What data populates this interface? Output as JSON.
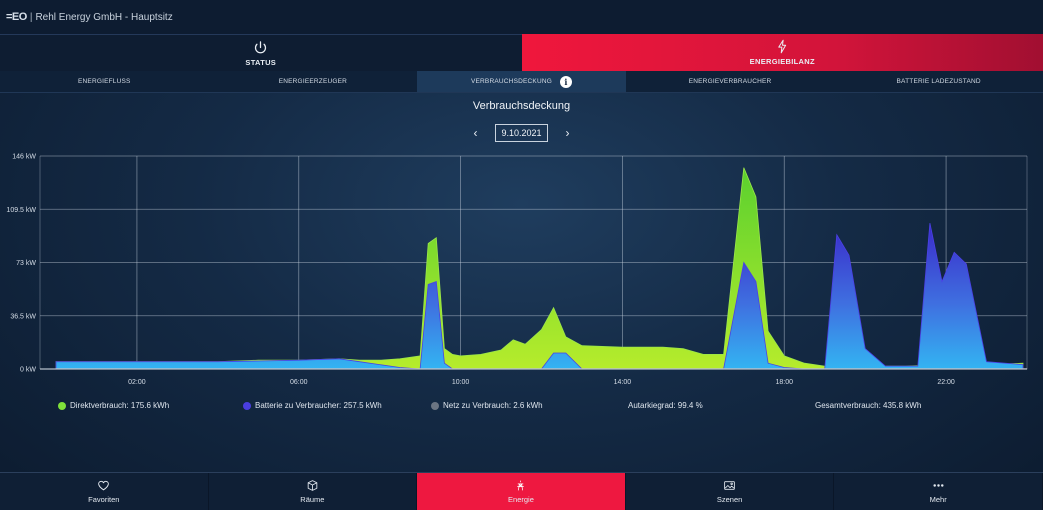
{
  "app": {
    "logo": "=EO",
    "separator": "|",
    "title": "Rehl Energy GmbH - Hauptsitz"
  },
  "main_tabs": [
    {
      "label": "STATUS",
      "icon": "power-icon",
      "active": false
    },
    {
      "label": "ENERGIEBILANZ",
      "icon": "lightning-icon",
      "active": true
    }
  ],
  "sub_tabs": [
    {
      "label": "ENERGIEFLUSS",
      "active": false
    },
    {
      "label": "ENERGIEERZEUGER",
      "active": false
    },
    {
      "label": "VERBRAUCHSDECKUNG",
      "active": true
    },
    {
      "label": "ENERGIEVERBRAUCHER",
      "active": false
    },
    {
      "label": "BATTERIE LADEZUSTAND",
      "active": false
    }
  ],
  "page": {
    "title": "Verbrauchsdeckung",
    "date": "9.10.2021",
    "prev_icon": "chevron-left-icon",
    "next_icon": "chevron-right-icon",
    "info_glyph": "i"
  },
  "colors": {
    "direct": "#7fe03a",
    "battery": "#4a3ee0",
    "grid": "#6b7583",
    "active_red": "#ee1840"
  },
  "chart_data": {
    "type": "area",
    "x_unit": "hours",
    "y_unit": "kW",
    "ylim": [
      0,
      146
    ],
    "y_ticks": [
      0,
      36.5,
      73,
      109.5,
      146
    ],
    "y_tick_labels": [
      "0 kW",
      "36.5 kW",
      "73 kW",
      "109.5 kW",
      "146 kW"
    ],
    "x_ticks": [
      2,
      6,
      10,
      14,
      18,
      22
    ],
    "x_tick_labels": [
      "02:00",
      "06:00",
      "10:00",
      "14:00",
      "18:00",
      "22:00"
    ],
    "xlim": [
      0,
      24
    ],
    "grid": true,
    "series": [
      {
        "key": "direct",
        "x": [
          0,
          2,
          4,
          5,
          6,
          7,
          7.5,
          8,
          8.5,
          9,
          9.2,
          9.4,
          9.6,
          9.8,
          10,
          10.5,
          11,
          11.3,
          11.6,
          12,
          12.3,
          12.6,
          13,
          14,
          15,
          15.5,
          16,
          16.5,
          17,
          17.3,
          17.6,
          18,
          18.5,
          19,
          20,
          21,
          22,
          23,
          23.9
        ],
        "values": [
          5,
          5,
          5,
          6,
          6,
          7,
          6,
          6,
          7,
          9,
          86,
          90,
          14,
          10,
          9,
          10,
          13,
          20,
          17,
          27,
          42,
          22,
          16,
          15,
          15,
          14,
          10,
          10,
          138,
          118,
          26,
          9,
          4,
          2,
          2,
          2,
          3,
          3,
          4
        ]
      },
      {
        "key": "battery",
        "x": [
          0,
          2,
          4,
          5,
          6,
          7,
          7.5,
          8,
          8.5,
          9,
          9.2,
          9.4,
          9.6,
          9.8,
          10,
          11,
          12,
          12.3,
          12.6,
          13,
          14,
          15,
          16,
          16.5,
          17,
          17.3,
          17.6,
          18,
          18.5,
          19,
          19.3,
          19.6,
          20,
          20.5,
          21,
          21.3,
          21.6,
          21.9,
          22.2,
          22.5,
          23,
          23.9
        ],
        "values": [
          5,
          5,
          5,
          5.5,
          6,
          7,
          5,
          3,
          1,
          0,
          58,
          60,
          4,
          0,
          0,
          0,
          0,
          11,
          11,
          0,
          0,
          0,
          0,
          0,
          73,
          60,
          4,
          1,
          0,
          0,
          92,
          78,
          14,
          2,
          2,
          2,
          100,
          60,
          80,
          72,
          5,
          3
        ]
      },
      {
        "key": "grid",
        "x": [
          0,
          6,
          12,
          18,
          24
        ],
        "values": [
          0.2,
          0.2,
          0.2,
          0.2,
          0.2
        ]
      }
    ]
  },
  "legend": [
    {
      "key": "direct",
      "label": "Direktverbrauch: 175.6 kWh"
    },
    {
      "key": "battery",
      "label": "Batterie zu Verbraucher: 257.5 kWh"
    },
    {
      "key": "grid",
      "label": "Netz zu Verbrauch: 2.6 kWh"
    }
  ],
  "stats": {
    "autarky": "Autarkiegrad: 99.4 %",
    "total": "Gesamtverbrauch: 435.8 kWh"
  },
  "bottom_nav": [
    {
      "label": "Favoriten",
      "icon": "heart-icon",
      "active": false
    },
    {
      "label": "Räume",
      "icon": "cube-icon",
      "active": false
    },
    {
      "label": "Energie",
      "icon": "energy-icon",
      "active": true
    },
    {
      "label": "Szenen",
      "icon": "image-icon",
      "active": false
    },
    {
      "label": "Mehr",
      "icon": "more-dots-icon",
      "active": false
    }
  ]
}
